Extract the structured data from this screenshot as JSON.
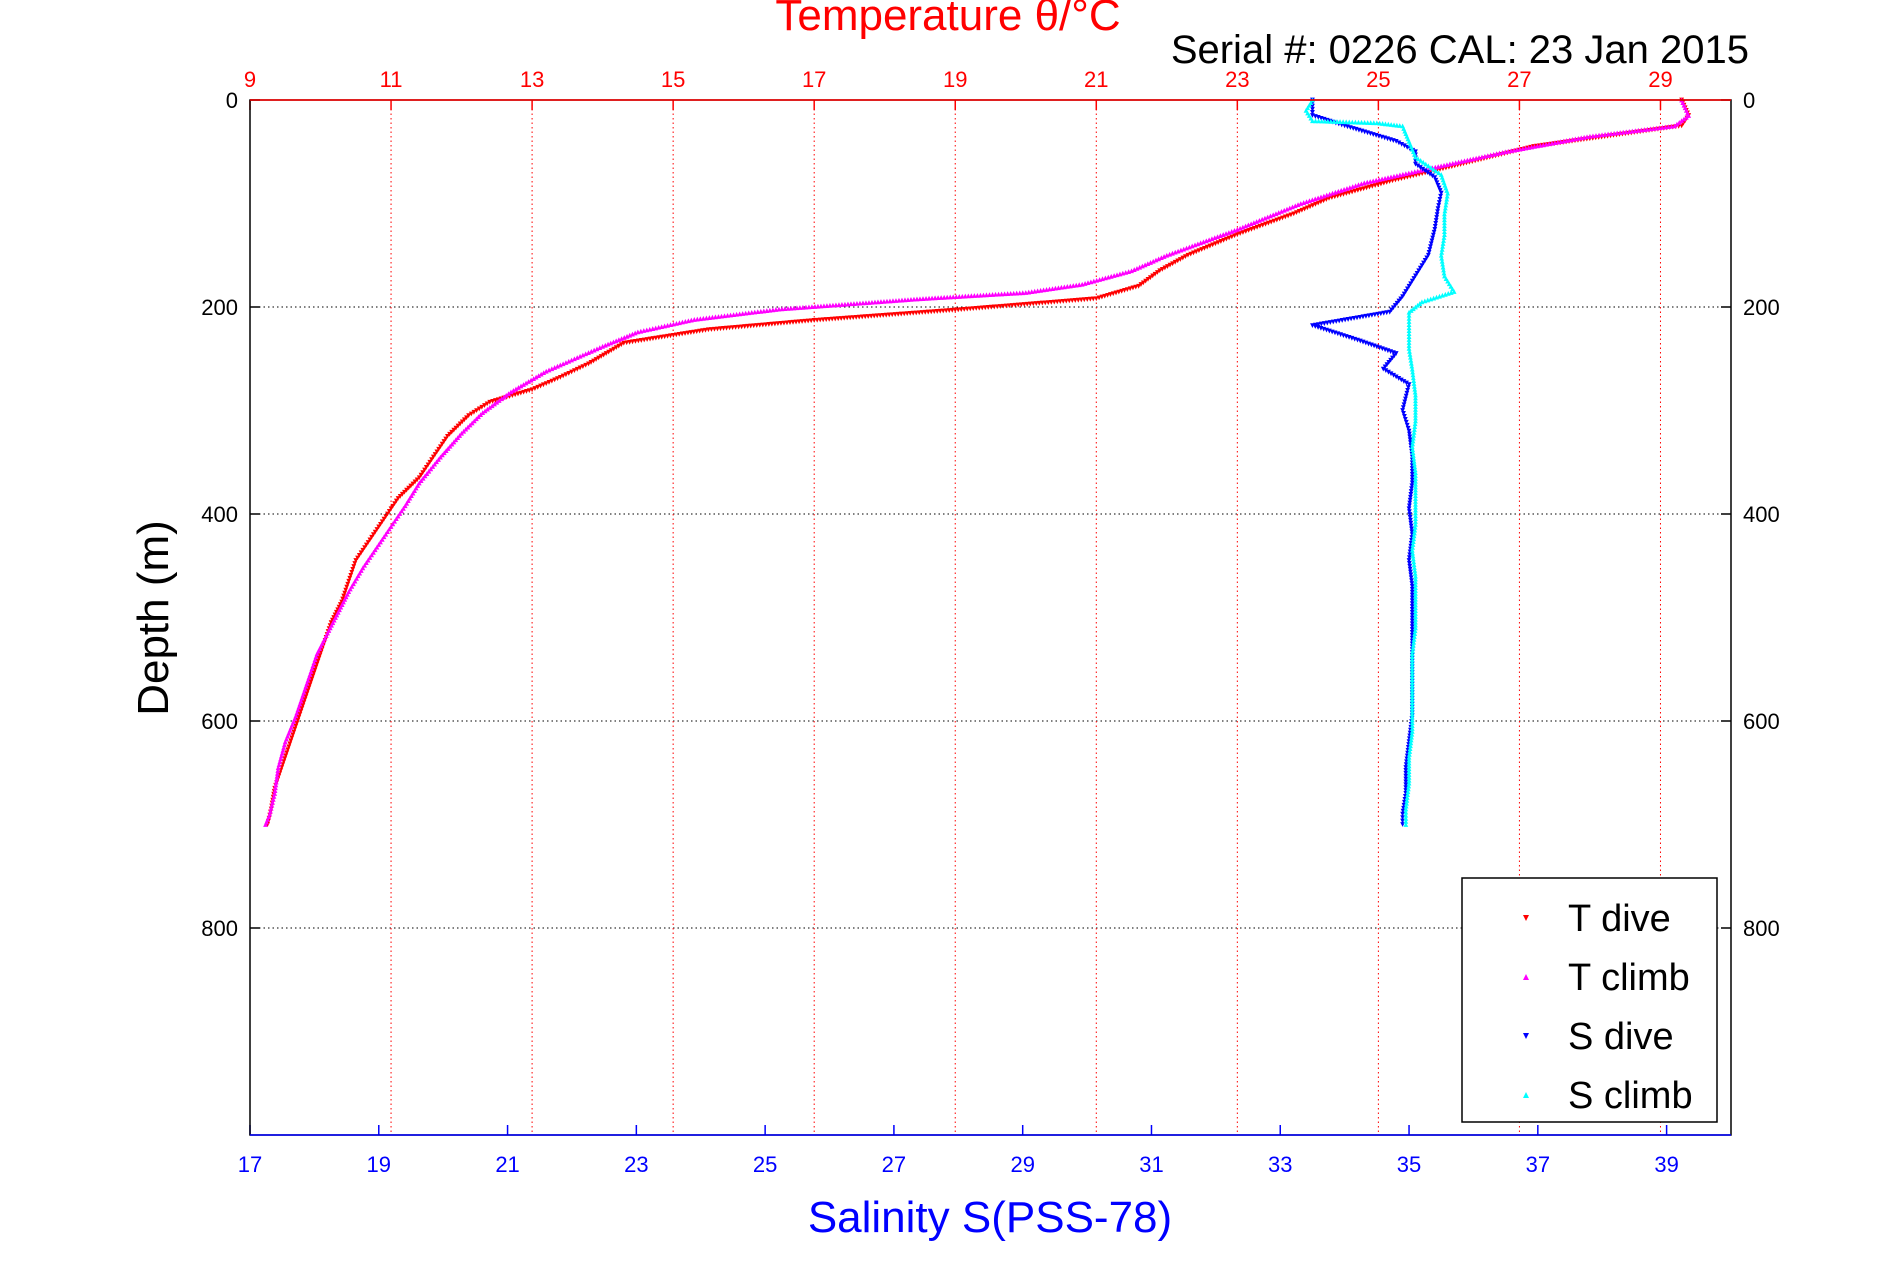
{
  "chart_data": {
    "type": "scatter",
    "title": "Temperature θ/°C",
    "subtitle": "Serial #: 0226  CAL: 23 Jan 2015",
    "xlabel": "Salinity S(PSS-78)",
    "ylabel": "Depth (m)",
    "grid": true,
    "legend_position": "bottom-right",
    "y_axis": {
      "lim": [
        0,
        1000
      ],
      "reversed": true,
      "ticks": [
        0,
        200,
        400,
        600,
        800
      ]
    },
    "x_bottom": {
      "lim": [
        17,
        40
      ],
      "ticks": [
        17,
        19,
        21,
        23,
        25,
        27,
        29,
        31,
        33,
        35,
        37,
        39
      ],
      "color": "#0000ff"
    },
    "x_top": {
      "lim": [
        9,
        30
      ],
      "ticks": [
        9,
        11,
        13,
        15,
        17,
        19,
        21,
        23,
        25,
        27,
        29
      ],
      "color": "#ff0000"
    },
    "series": [
      {
        "name": "T dive",
        "axis": "top",
        "color": "#ff0000",
        "marker": "triangle-down",
        "points": [
          [
            29.3,
            0
          ],
          [
            29.4,
            15
          ],
          [
            29.3,
            25
          ],
          [
            27.2,
            45
          ],
          [
            26.0,
            65
          ],
          [
            25.2,
            78
          ],
          [
            24.3,
            95
          ],
          [
            23.8,
            110
          ],
          [
            23.0,
            130
          ],
          [
            22.3,
            150
          ],
          [
            21.9,
            165
          ],
          [
            21.6,
            180
          ],
          [
            21.0,
            192
          ],
          [
            19.0,
            203
          ],
          [
            17.0,
            213
          ],
          [
            15.5,
            222
          ],
          [
            14.3,
            235
          ],
          [
            13.8,
            255
          ],
          [
            13.4,
            268
          ],
          [
            13.0,
            280
          ],
          [
            12.4,
            292
          ],
          [
            12.1,
            305
          ],
          [
            11.8,
            325
          ],
          [
            11.6,
            345
          ],
          [
            11.4,
            365
          ],
          [
            11.1,
            385
          ],
          [
            10.9,
            405
          ],
          [
            10.7,
            425
          ],
          [
            10.5,
            445
          ],
          [
            10.4,
            465
          ],
          [
            10.3,
            485
          ],
          [
            10.15,
            505
          ],
          [
            10.05,
            525
          ],
          [
            9.95,
            545
          ],
          [
            9.85,
            565
          ],
          [
            9.75,
            585
          ],
          [
            9.65,
            605
          ],
          [
            9.55,
            625
          ],
          [
            9.45,
            645
          ],
          [
            9.35,
            665
          ],
          [
            9.3,
            685
          ],
          [
            9.25,
            700
          ]
        ]
      },
      {
        "name": "T climb",
        "axis": "top",
        "color": "#ff00ff",
        "marker": "triangle-up",
        "points": [
          [
            29.3,
            0
          ],
          [
            29.4,
            15
          ],
          [
            29.2,
            25
          ],
          [
            28.0,
            35
          ],
          [
            26.8,
            50
          ],
          [
            25.6,
            68
          ],
          [
            24.8,
            80
          ],
          [
            23.9,
            100
          ],
          [
            23.0,
            125
          ],
          [
            22.0,
            150
          ],
          [
            21.5,
            165
          ],
          [
            20.8,
            178
          ],
          [
            20.0,
            186
          ],
          [
            18.5,
            192
          ],
          [
            16.5,
            202
          ],
          [
            15.3,
            212
          ],
          [
            14.5,
            224
          ],
          [
            14.0,
            238
          ],
          [
            13.6,
            250
          ],
          [
            13.2,
            262
          ],
          [
            12.7,
            282
          ],
          [
            12.3,
            302
          ],
          [
            12.0,
            322
          ],
          [
            11.7,
            345
          ],
          [
            11.4,
            370
          ],
          [
            11.2,
            392
          ],
          [
            11.0,
            412
          ],
          [
            10.8,
            432
          ],
          [
            10.6,
            452
          ],
          [
            10.4,
            475
          ],
          [
            10.25,
            495
          ],
          [
            10.1,
            515
          ],
          [
            9.95,
            535
          ],
          [
            9.85,
            555
          ],
          [
            9.75,
            575
          ],
          [
            9.65,
            595
          ],
          [
            9.5,
            620
          ],
          [
            9.4,
            645
          ],
          [
            9.35,
            670
          ],
          [
            9.28,
            690
          ],
          [
            9.22,
            700
          ]
        ]
      },
      {
        "name": "S dive",
        "axis": "bottom",
        "color": "#0000ff",
        "marker": "triangle-down",
        "points": [
          [
            33.5,
            0
          ],
          [
            33.5,
            15
          ],
          [
            34.0,
            25
          ],
          [
            34.8,
            40
          ],
          [
            35.1,
            50
          ],
          [
            35.1,
            62
          ],
          [
            35.4,
            75
          ],
          [
            35.5,
            90
          ],
          [
            35.45,
            105
          ],
          [
            35.4,
            125
          ],
          [
            35.3,
            150
          ],
          [
            35.1,
            170
          ],
          [
            34.9,
            190
          ],
          [
            34.7,
            205
          ],
          [
            33.5,
            218
          ],
          [
            34.2,
            232
          ],
          [
            34.8,
            245
          ],
          [
            34.6,
            260
          ],
          [
            35.0,
            275
          ],
          [
            34.9,
            300
          ],
          [
            35.0,
            320
          ],
          [
            35.05,
            345
          ],
          [
            35.05,
            370
          ],
          [
            35.0,
            395
          ],
          [
            35.05,
            420
          ],
          [
            35.0,
            445
          ],
          [
            35.05,
            470
          ],
          [
            35.05,
            495
          ],
          [
            35.05,
            520
          ],
          [
            35.05,
            545
          ],
          [
            35.05,
            570
          ],
          [
            35.05,
            595
          ],
          [
            35.0,
            620
          ],
          [
            34.95,
            645
          ],
          [
            34.95,
            670
          ],
          [
            34.9,
            690
          ],
          [
            34.9,
            700
          ]
        ]
      },
      {
        "name": "S climb",
        "axis": "bottom",
        "color": "#00ffff",
        "marker": "triangle-up",
        "points": [
          [
            33.5,
            0
          ],
          [
            33.4,
            10
          ],
          [
            33.5,
            20
          ],
          [
            34.5,
            22
          ],
          [
            34.9,
            25
          ],
          [
            35.0,
            40
          ],
          [
            35.1,
            55
          ],
          [
            35.5,
            72
          ],
          [
            35.6,
            90
          ],
          [
            35.55,
            110
          ],
          [
            35.55,
            130
          ],
          [
            35.5,
            150
          ],
          [
            35.55,
            170
          ],
          [
            35.7,
            185
          ],
          [
            35.2,
            195
          ],
          [
            35.0,
            205
          ],
          [
            35.0,
            220
          ],
          [
            35.0,
            240
          ],
          [
            35.05,
            260
          ],
          [
            35.1,
            285
          ],
          [
            35.1,
            310
          ],
          [
            35.05,
            335
          ],
          [
            35.1,
            360
          ],
          [
            35.1,
            385
          ],
          [
            35.1,
            410
          ],
          [
            35.05,
            435
          ],
          [
            35.1,
            460
          ],
          [
            35.1,
            485
          ],
          [
            35.1,
            510
          ],
          [
            35.05,
            535
          ],
          [
            35.05,
            560
          ],
          [
            35.05,
            585
          ],
          [
            35.05,
            610
          ],
          [
            35.0,
            635
          ],
          [
            35.0,
            660
          ],
          [
            34.95,
            685
          ],
          [
            34.95,
            700
          ]
        ]
      }
    ]
  }
}
